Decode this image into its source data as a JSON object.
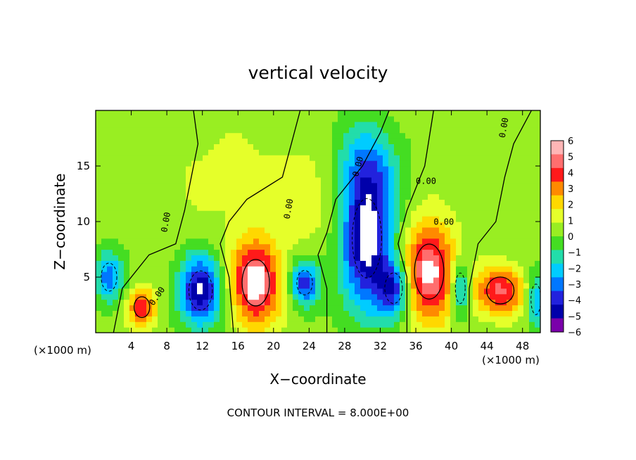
{
  "chart_data": {
    "type": "heatmap",
    "title": "vertical velocity",
    "xlabel": "X−coordinate",
    "ylabel": "Z−coordinate",
    "x_unit_left": "(×1000 m)",
    "x_unit_right": "(×1000 m)",
    "xlim": [
      0,
      50
    ],
    "ylim": [
      0,
      20
    ],
    "x_ticks": [
      4,
      8,
      12,
      16,
      20,
      24,
      28,
      32,
      36,
      40,
      44,
      48
    ],
    "y_ticks": [
      5,
      10,
      15
    ],
    "colorbar": {
      "min": -6,
      "max": 6,
      "ticks": [
        "6",
        "5",
        "4",
        "3",
        "2",
        "1",
        "0",
        "−1",
        "−2",
        "−3",
        "−4",
        "−5",
        "−6"
      ],
      "colors": [
        "#ffb6b6",
        "#ff6e6e",
        "#ff1a1a",
        "#ff8a00",
        "#ffd800",
        "#e5ff2a",
        "#99ee22",
        "#44dd22",
        "#22ddaa",
        "#00ccff",
        "#0077ff",
        "#2222dd",
        "#0000aa",
        "#7a00aa"
      ]
    },
    "contour_labels": [
      "0.00",
      "0.00",
      "0.00",
      "0.00",
      "0.00",
      "0.00",
      "0.00"
    ],
    "cells": [
      {
        "x": 18,
        "z": 4.5,
        "w": 0.9,
        "rx": 2.8,
        "rz": 3.8
      },
      {
        "x": 37.5,
        "z": 5.5,
        "w": 0.85,
        "rx": 3.0,
        "rz": 4.5
      },
      {
        "x": 45.5,
        "z": 3.8,
        "w": 0.7,
        "rx": 2.8,
        "rz": 2.2
      },
      {
        "x": 5.2,
        "z": 2.3,
        "w": 0.65,
        "rx": 1.6,
        "rz": 1.7
      },
      {
        "x": 11.8,
        "z": 3.8,
        "w": -0.9,
        "rx": 2.4,
        "rz": 3.2
      },
      {
        "x": 30.5,
        "z": 8.5,
        "w": -0.95,
        "rx": 3.0,
        "rz": 6.5
      },
      {
        "x": 33.5,
        "z": 4.0,
        "w": -0.7,
        "rx": 1.8,
        "rz": 2.5
      },
      {
        "x": 23.5,
        "z": 4.5,
        "w": -0.75,
        "rx": 1.6,
        "rz": 2.0
      },
      {
        "x": 41,
        "z": 4.0,
        "w": -0.6,
        "rx": 1.0,
        "rz": 2.5
      },
      {
        "x": 1.5,
        "z": 5.0,
        "w": -0.55,
        "rx": 1.6,
        "rz": 2.3
      },
      {
        "x": 49.5,
        "z": 3.0,
        "w": -0.5,
        "rx": 1.0,
        "rz": 2.5
      },
      {
        "x": 30.5,
        "z": 15,
        "w": -0.35,
        "rx": 3.5,
        "rz": 4.0
      },
      {
        "x": 15,
        "z": 14,
        "w": 0.12,
        "rx": 8,
        "rz": 6
      },
      {
        "x": 24,
        "z": 12,
        "w": 0.18,
        "rx": 4,
        "rz": 4
      }
    ],
    "contour_interval_text": "CONTOUR INTERVAL = 8.000E+00"
  }
}
